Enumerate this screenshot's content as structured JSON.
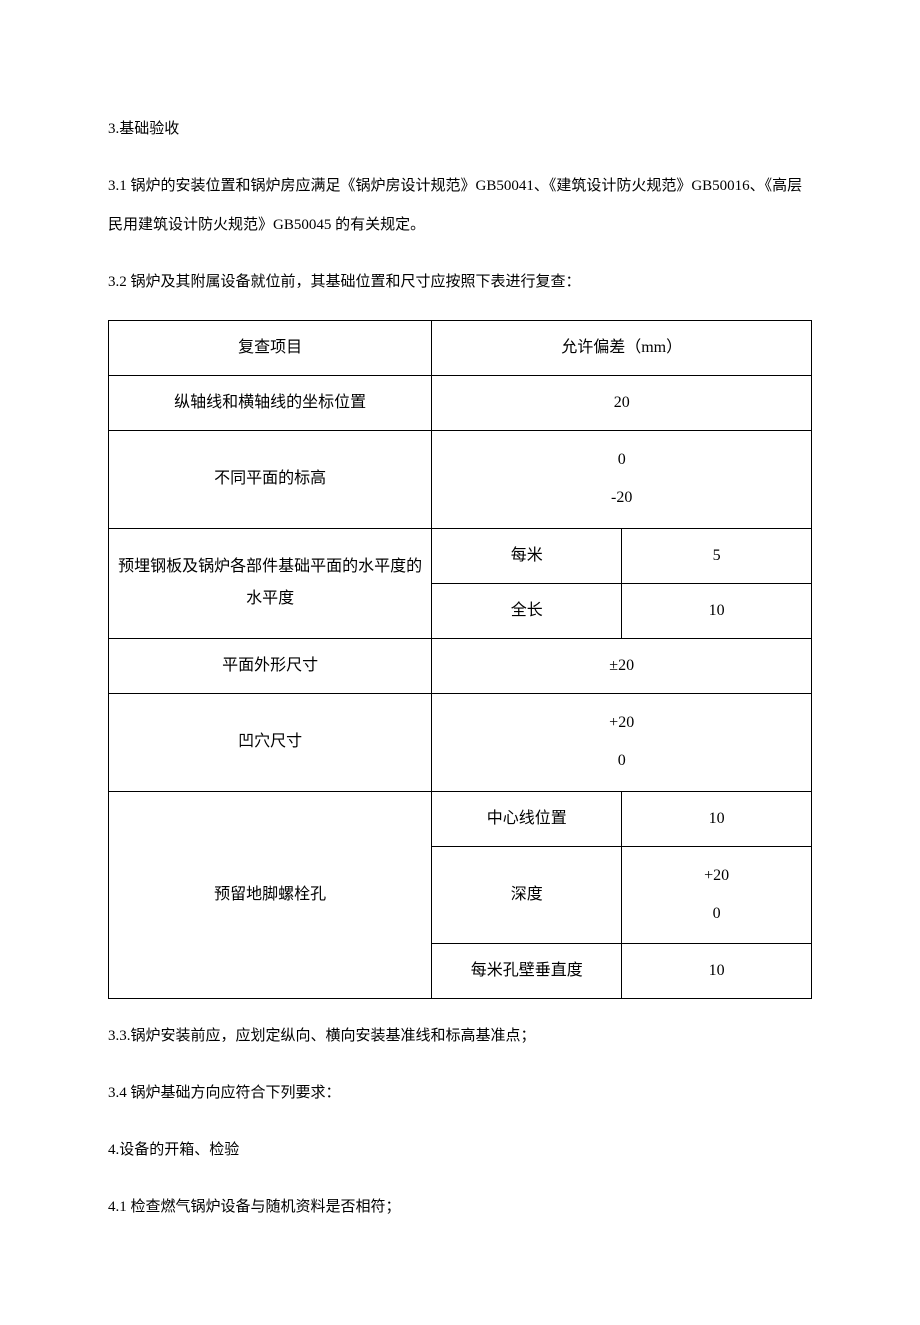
{
  "paragraphs": {
    "p1": "3.基础验收",
    "p2": "3.1 锅炉的安装位置和锅炉房应满足《锅炉房设计规范》GB50041、《建筑设计防火规范》GB50016、《高层民用建筑设计防火规范》GB50045 的有关规定。",
    "p3": "3.2 锅炉及其附属设备就位前，其基础位置和尺寸应按照下表进行复查：",
    "p4": "3.3.锅炉安装前应，应划定纵向、横向安装基准线和标高基准点；",
    "p5": "3.4 锅炉基础方向应符合下列要求：",
    "p6": "4.设备的开箱、检验",
    "p7": "4.1 检查燃气锅炉设备与随机资料是否相符；"
  },
  "table": {
    "header": {
      "item": "复查项目",
      "tolerance": "允许偏差（mm）"
    },
    "rows": {
      "r1": {
        "item": "纵轴线和横轴线的坐标位置",
        "value": "20"
      },
      "r2": {
        "item": "不同平面的标高",
        "value_top": "0",
        "value_bottom": "-20"
      },
      "r3": {
        "item": "预埋钢板及锅炉各部件基础平面的水平度的水平度",
        "sub1": "每米",
        "val1": "5",
        "sub2": "全长",
        "val2": "10"
      },
      "r4": {
        "item": "平面外形尺寸",
        "value": "±20"
      },
      "r5": {
        "item": "凹穴尺寸",
        "value_top": "+20",
        "value_bottom": "0"
      },
      "r6": {
        "item": "预留地脚螺栓孔",
        "sub1": "中心线位置",
        "val1": "10",
        "sub2": "深度",
        "val2_top": "+20",
        "val2_bottom": "0",
        "sub3": "每米孔壁垂直度",
        "val3": "10"
      }
    }
  }
}
